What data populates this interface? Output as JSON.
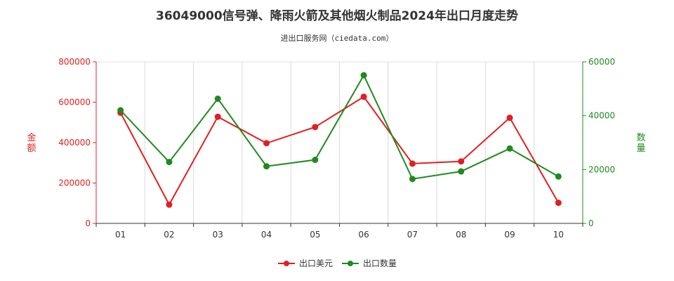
{
  "chart_data": {
    "type": "line",
    "title": "36049000信号弹、降雨火箭及其他烟火制品2024年出口月度走势",
    "subtitle": "进出口服务网（ciedata.com）",
    "categories": [
      "01",
      "02",
      "03",
      "04",
      "05",
      "06",
      "07",
      "08",
      "09",
      "10"
    ],
    "y_left": {
      "label": "金额",
      "ylim": [
        0,
        800000
      ],
      "ticks": [
        0,
        200000,
        400000,
        600000,
        800000
      ],
      "color": "#e02020"
    },
    "y_right": {
      "label": "数量",
      "ylim": [
        0,
        60000
      ],
      "ticks": [
        0,
        20000,
        40000,
        60000
      ],
      "color": "#1f8a1f"
    },
    "series": [
      {
        "name": "出口美元",
        "axis": "left",
        "color": "#e02020",
        "values": [
          548000,
          93000,
          528000,
          397000,
          477000,
          627000,
          296000,
          307000,
          523000,
          102000
        ]
      },
      {
        "name": "出口数量",
        "axis": "right",
        "color": "#1f8a1f",
        "values": [
          42000,
          22800,
          46300,
          21200,
          23600,
          55000,
          16500,
          19300,
          27800,
          17400
        ]
      }
    ],
    "grid": "vertical",
    "legend": "bottom-center"
  }
}
